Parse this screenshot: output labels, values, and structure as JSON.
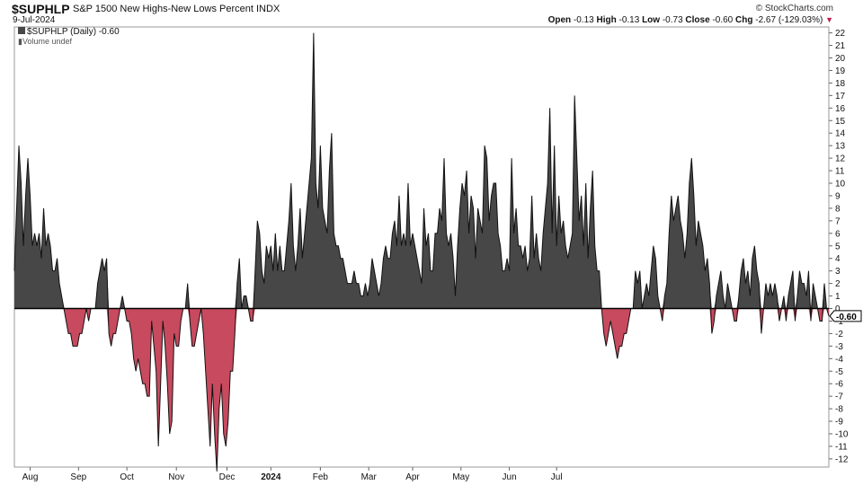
{
  "header": {
    "symbol": "$SUPHLP",
    "description": "S&P 1500 New Highs-New Lows Percent INDX",
    "date": "9-Jul-2024",
    "credit": "© StockCharts.com",
    "open_label": "Open",
    "open": "-0.13",
    "high_label": "High",
    "high": "-0.13",
    "low_label": "Low",
    "low": "-0.73",
    "close_label": "Close",
    "close": "-0.60",
    "chg_label": "Chg",
    "chg": "-2.67 (-129.03%)"
  },
  "legend": {
    "series_label": "$SUPHLP (Daily) -0.60",
    "volume_label": "Volume undef"
  },
  "colors": {
    "positive_fill": "#474747",
    "negative_fill": "#c84a5e",
    "line": "#111111",
    "last_value_badge": "#ffffff"
  },
  "chart_data": {
    "type": "area",
    "title": "S&P 1500 New Highs-New Lows Percent",
    "xlabel": "",
    "ylabel": "",
    "ylim": [
      -13,
      23
    ],
    "y_ticks": [
      22,
      21,
      20,
      19,
      18,
      17,
      16,
      15,
      14,
      13,
      12,
      11,
      10,
      9,
      8,
      7,
      6,
      5,
      4,
      3,
      2,
      1,
      0,
      -1,
      -2,
      -3,
      -4,
      -5,
      -6,
      -7,
      -8,
      -9,
      -10,
      -11,
      -12
    ],
    "x_tick_labels": [
      "Aug",
      "Sep",
      "Oct",
      "Nov",
      "Dec",
      "2024",
      "Feb",
      "Mar",
      "Apr",
      "May",
      "Jun",
      "Jul"
    ],
    "x_tick_positions": [
      7.0,
      28.5,
      50.0,
      72.0,
      94.5,
      114.0,
      136.0,
      157.5,
      177.0,
      198.5,
      220.0,
      241.0
    ],
    "last_value_label": "-0.60",
    "grid": false,
    "series": [
      {
        "values": [
          3,
          8,
          13,
          10,
          5,
          9,
          12,
          9,
          5,
          6,
          5,
          6,
          4,
          8,
          5,
          6,
          5,
          3,
          3,
          4,
          2,
          1,
          0,
          -1,
          -2,
          -2,
          -3,
          -3,
          -3,
          -2,
          -2,
          -1,
          0,
          -1,
          0,
          0,
          0,
          2,
          3,
          4,
          3,
          4,
          -2,
          -3,
          -2,
          -2,
          -1,
          0,
          1,
          0,
          -1,
          -1,
          -2,
          -4,
          -5,
          -4,
          -5,
          -6,
          -6,
          -7,
          -7,
          -1,
          -3,
          -5,
          -11,
          -6,
          -1,
          -3,
          -6,
          -10,
          -9,
          -2,
          -3,
          -3,
          -1,
          0,
          0,
          2,
          -1,
          -3,
          -3,
          -2,
          -1,
          0,
          -2,
          -5,
          -8,
          -11,
          -6,
          -10,
          -13,
          -8,
          -6,
          -10,
          -11,
          -9,
          -5,
          -5,
          -2,
          2,
          4,
          0,
          1,
          1,
          0,
          -1,
          -1,
          3,
          7,
          6,
          3,
          2,
          5,
          4,
          5,
          3,
          6,
          3,
          5,
          3,
          3,
          5,
          7,
          10,
          5,
          3,
          5,
          8,
          4,
          6,
          8,
          10,
          12,
          22,
          10,
          8,
          13,
          8,
          7,
          6,
          11,
          14,
          6,
          5,
          5,
          4,
          4,
          3,
          2,
          2,
          2,
          3,
          2,
          2,
          1,
          1,
          2,
          1,
          2,
          4,
          3,
          2,
          1,
          2,
          4,
          5,
          4,
          4,
          6,
          7,
          5,
          9,
          5,
          6,
          5,
          10,
          5,
          6,
          5,
          4,
          3,
          2,
          8,
          5,
          6,
          3,
          3,
          6,
          6,
          8,
          7,
          12,
          6,
          5,
          6,
          4,
          1,
          5,
          8,
          10,
          9,
          11,
          6,
          9,
          8,
          4,
          8,
          7,
          6,
          13,
          12,
          7,
          9,
          10,
          10,
          6,
          5,
          3,
          3,
          4,
          3,
          12,
          6,
          8,
          5,
          5,
          4,
          5,
          3,
          4,
          9,
          4,
          6,
          4,
          3,
          6,
          8,
          10,
          16,
          6,
          13,
          5,
          9,
          6,
          7,
          5,
          4,
          5,
          6,
          17,
          12,
          7,
          9,
          5,
          10,
          4,
          8,
          11,
          5,
          3,
          3,
          0,
          -2,
          -3,
          -2,
          -1,
          -2,
          -3,
          -4,
          -3,
          -3,
          -2,
          -2,
          -1,
          0,
          0,
          3,
          2,
          3,
          0,
          1,
          2,
          1,
          3,
          5,
          4,
          1,
          0,
          -1,
          1,
          2,
          6,
          9,
          7,
          8,
          9,
          7,
          6,
          4,
          6,
          10,
          12,
          9,
          5,
          7,
          6,
          5,
          3,
          4,
          2,
          -2,
          -1,
          1,
          2,
          3,
          1,
          0,
          2,
          1,
          0,
          -1,
          -1,
          1,
          3,
          4,
          2,
          3,
          1,
          4,
          5,
          3,
          2,
          -2,
          0,
          2,
          1,
          2,
          1,
          2,
          1,
          -1,
          0,
          1,
          -1,
          1,
          2,
          3,
          -1,
          1,
          3,
          2,
          2,
          1,
          3,
          -1,
          2,
          1,
          0,
          -1,
          -1,
          2,
          0,
          -0.6
        ]
      }
    ]
  }
}
